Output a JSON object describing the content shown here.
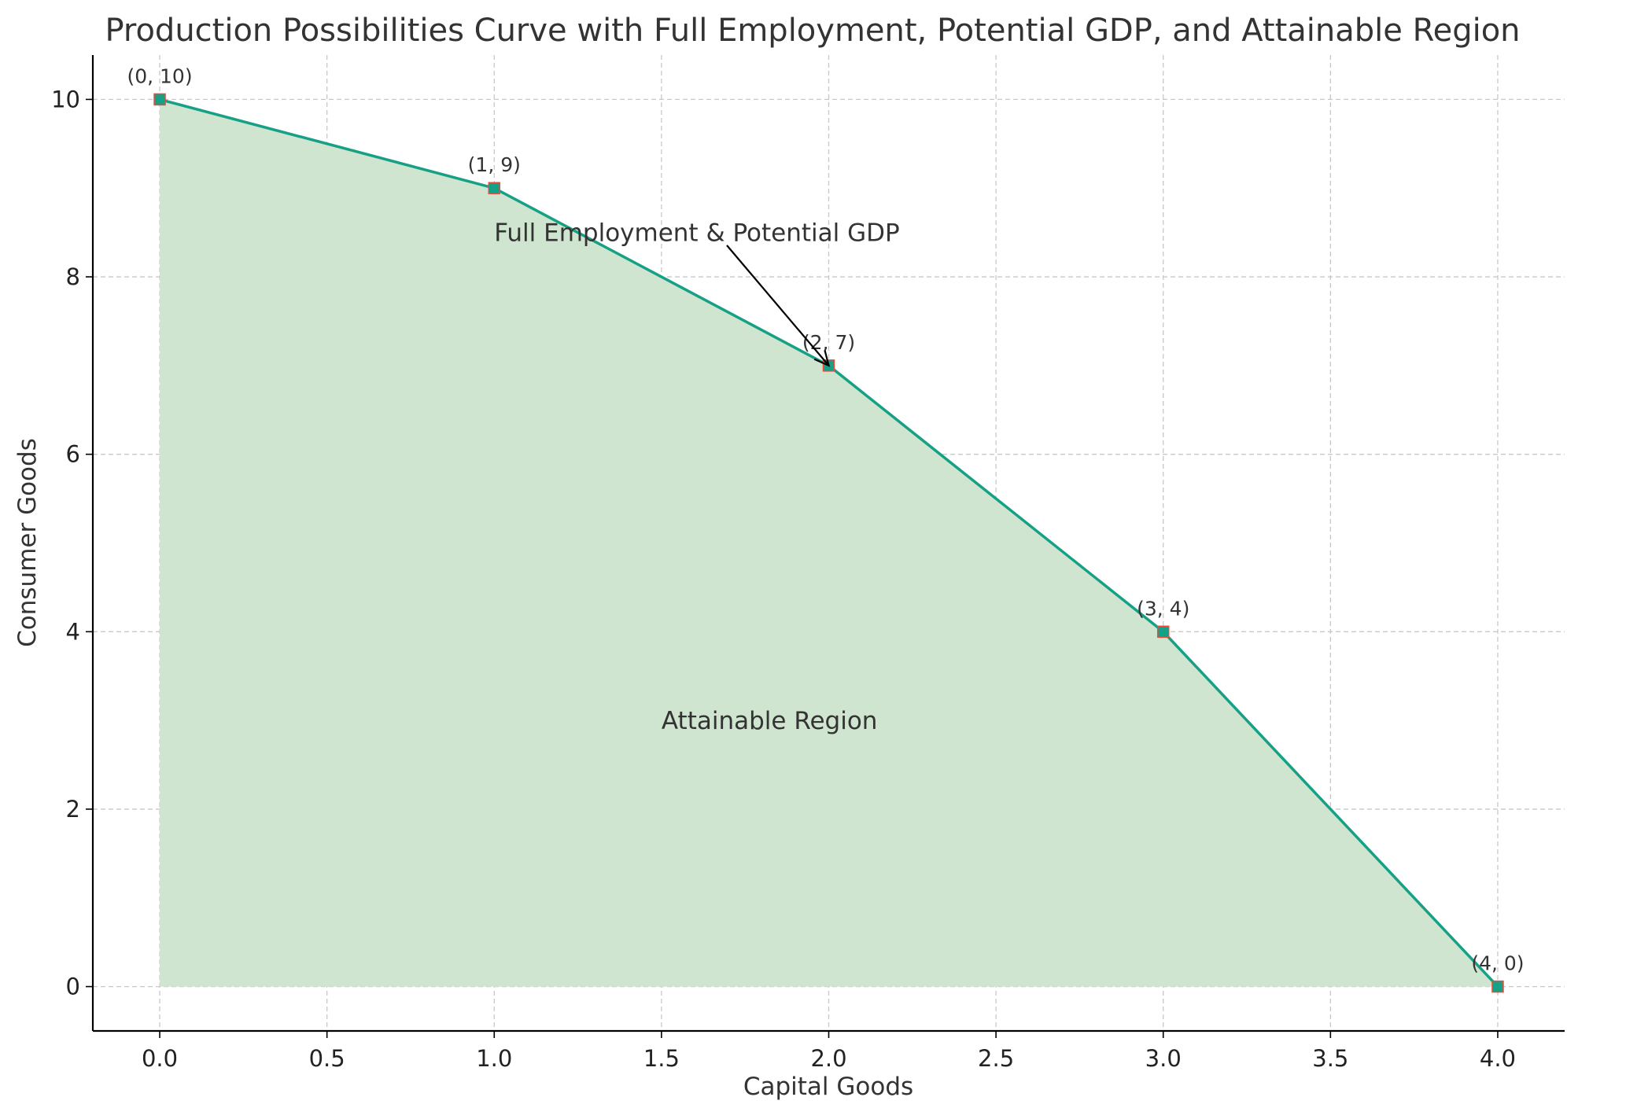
{
  "chart_data": {
    "type": "area",
    "title": "Production Possibilities Curve with Full Employment, Potential GDP, and Attainable Region",
    "xlabel": "Capital Goods",
    "ylabel": "Consumer Goods",
    "xlim": [
      -0.2,
      4.2
    ],
    "ylim": [
      -0.5,
      10.5
    ],
    "x_ticks": [
      "0.0",
      "0.5",
      "1.0",
      "1.5",
      "2.0",
      "2.5",
      "3.0",
      "3.5",
      "4.0"
    ],
    "y_ticks": [
      "0",
      "2",
      "4",
      "6",
      "8",
      "10"
    ],
    "grid": true,
    "series": [
      {
        "x": [
          0,
          1,
          2,
          3,
          4
        ],
        "y": [
          10,
          9,
          7,
          4,
          0
        ],
        "point_labels": [
          "(0, 10)",
          "(1, 9)",
          "(2, 7)",
          "(3, 4)",
          "(4, 0)"
        ]
      }
    ],
    "annotations": [
      {
        "text": "Full Employment & Potential GDP",
        "text_x": 1.0,
        "text_y": 8.5,
        "arrow_to_x": 2,
        "arrow_to_y": 7
      },
      {
        "text": "Attainable Region",
        "text_x": 1.5,
        "text_y": 3.0
      }
    ],
    "colors": {
      "line": "#16a085",
      "fill": "#cfe5cf",
      "marker_edge": "#e74c3c",
      "grid": "#c8c8c8",
      "text": "#333333"
    }
  }
}
